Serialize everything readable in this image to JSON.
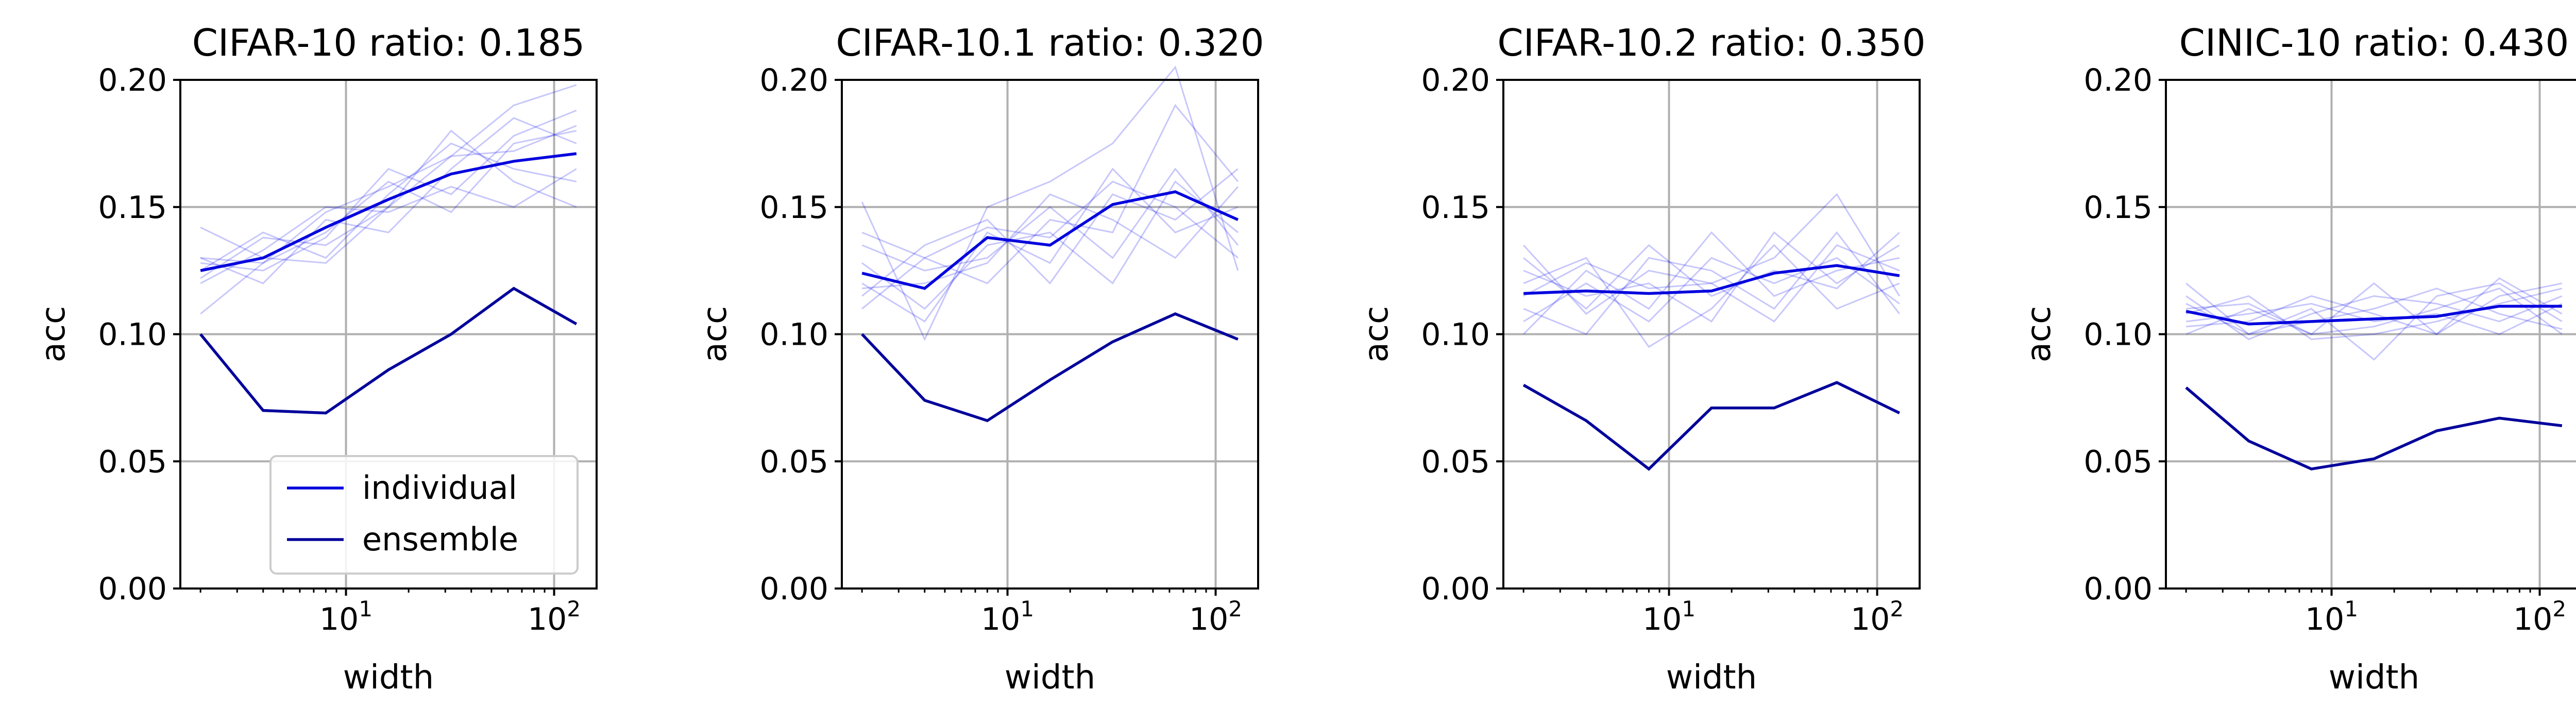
{
  "colors": {
    "individual": "#0000dd",
    "ensemble": "#00009b",
    "runs": "#0000ee"
  },
  "chart_data": [
    {
      "type": "line",
      "title": "CIFAR-10 ratio: 0.185",
      "xlabel": "width",
      "ylabel": "acc",
      "xscale": "log",
      "x": [
        2,
        4,
        8,
        16,
        32,
        64,
        128
      ],
      "ylim": [
        0.0,
        0.2
      ],
      "yticks": [
        0.0,
        0.05,
        0.1,
        0.15,
        0.2
      ],
      "ytick_labels": [
        "0.00",
        "0.05",
        "0.10",
        "0.15",
        "0.20"
      ],
      "xtick_labels": [
        "10",
        "10"
      ],
      "xtick_exponents": [
        "1",
        "2"
      ],
      "grid": true,
      "legend": {
        "placement": "lower-right",
        "entries": [
          "individual",
          "ensemble"
        ]
      },
      "series": [
        {
          "name": "individual",
          "values": [
            0.125,
            0.13,
            0.142,
            0.153,
            0.163,
            0.168,
            0.171
          ]
        },
        {
          "name": "ensemble",
          "values": [
            0.1,
            0.07,
            0.069,
            0.086,
            0.1,
            0.118,
            0.104
          ]
        }
      ],
      "runs": [
        [
          0.142,
          0.13,
          0.128,
          0.15,
          0.17,
          0.19,
          0.198
        ],
        [
          0.108,
          0.128,
          0.14,
          0.16,
          0.148,
          0.175,
          0.18
        ],
        [
          0.125,
          0.14,
          0.13,
          0.155,
          0.175,
          0.165,
          0.16
        ],
        [
          0.13,
          0.12,
          0.145,
          0.14,
          0.165,
          0.185,
          0.175
        ],
        [
          0.12,
          0.133,
          0.15,
          0.148,
          0.158,
          0.15,
          0.165
        ],
        [
          0.128,
          0.125,
          0.138,
          0.165,
          0.155,
          0.178,
          0.188
        ],
        [
          0.122,
          0.138,
          0.135,
          0.15,
          0.18,
          0.16,
          0.15
        ],
        [
          0.13,
          0.128,
          0.148,
          0.158,
          0.17,
          0.172,
          0.182
        ]
      ]
    },
    {
      "type": "line",
      "title": "CIFAR-10.1 ratio: 0.320",
      "xlabel": "width",
      "ylabel": "acc",
      "xscale": "log",
      "x": [
        2,
        4,
        8,
        16,
        32,
        64,
        128
      ],
      "ylim": [
        0.0,
        0.2
      ],
      "yticks": [
        0.0,
        0.05,
        0.1,
        0.15,
        0.2
      ],
      "ytick_labels": [
        "0.00",
        "0.05",
        "0.10",
        "0.15",
        "0.20"
      ],
      "xtick_labels": [
        "10",
        "10"
      ],
      "xtick_exponents": [
        "1",
        "2"
      ],
      "grid": true,
      "series": [
        {
          "name": "individual",
          "values": [
            0.124,
            0.118,
            0.138,
            0.135,
            0.151,
            0.156,
            0.145
          ]
        },
        {
          "name": "ensemble",
          "values": [
            0.1,
            0.074,
            0.066,
            0.082,
            0.097,
            0.108,
            0.098
          ]
        }
      ],
      "runs": [
        [
          0.152,
          0.098,
          0.15,
          0.16,
          0.175,
          0.205,
          0.125
        ],
        [
          0.11,
          0.13,
          0.12,
          0.145,
          0.14,
          0.19,
          0.16
        ],
        [
          0.12,
          0.105,
          0.14,
          0.128,
          0.165,
          0.14,
          0.15
        ],
        [
          0.135,
          0.125,
          0.13,
          0.15,
          0.13,
          0.165,
          0.135
        ],
        [
          0.115,
          0.135,
          0.145,
          0.12,
          0.155,
          0.145,
          0.165
        ],
        [
          0.128,
          0.11,
          0.135,
          0.14,
          0.12,
          0.16,
          0.14
        ],
        [
          0.118,
          0.12,
          0.128,
          0.155,
          0.145,
          0.13,
          0.158
        ],
        [
          0.14,
          0.13,
          0.142,
          0.138,
          0.16,
          0.15,
          0.13
        ]
      ]
    },
    {
      "type": "line",
      "title": "CIFAR-10.2 ratio: 0.350",
      "xlabel": "width",
      "ylabel": "acc",
      "xscale": "log",
      "x": [
        2,
        4,
        8,
        16,
        32,
        64,
        128
      ],
      "ylim": [
        0.0,
        0.2
      ],
      "yticks": [
        0.0,
        0.05,
        0.1,
        0.15,
        0.2
      ],
      "ytick_labels": [
        "0.00",
        "0.05",
        "0.10",
        "0.15",
        "0.20"
      ],
      "xtick_labels": [
        "10",
        "10"
      ],
      "xtick_exponents": [
        "1",
        "2"
      ],
      "grid": true,
      "series": [
        {
          "name": "individual",
          "values": [
            0.116,
            0.117,
            0.116,
            0.117,
            0.124,
            0.127,
            0.123
          ]
        },
        {
          "name": "ensemble",
          "values": [
            0.08,
            0.066,
            0.047,
            0.071,
            0.071,
            0.081,
            0.069
          ]
        }
      ],
      "runs": [
        [
          0.135,
          0.108,
          0.125,
          0.12,
          0.13,
          0.155,
          0.115
        ],
        [
          0.1,
          0.125,
          0.11,
          0.14,
          0.115,
          0.125,
          0.13
        ],
        [
          0.12,
          0.13,
          0.095,
          0.11,
          0.135,
          0.11,
          0.12
        ],
        [
          0.11,
          0.1,
          0.13,
          0.125,
          0.11,
          0.14,
          0.108
        ],
        [
          0.125,
          0.115,
          0.12,
          0.105,
          0.14,
          0.12,
          0.135
        ],
        [
          0.105,
          0.12,
          0.105,
          0.13,
          0.12,
          0.13,
          0.112
        ],
        [
          0.13,
          0.11,
          0.135,
          0.115,
          0.125,
          0.118,
          0.14
        ],
        [
          0.115,
          0.128,
          0.118,
          0.12,
          0.105,
          0.135,
          0.125
        ]
      ]
    },
    {
      "type": "line",
      "title": "CINIC-10 ratio: 0.430",
      "xlabel": "width",
      "ylabel": "acc",
      "xscale": "log",
      "x": [
        2,
        4,
        8,
        16,
        32,
        64,
        128
      ],
      "ylim": [
        0.0,
        0.2
      ],
      "yticks": [
        0.0,
        0.05,
        0.1,
        0.15,
        0.2
      ],
      "ytick_labels": [
        "0.00",
        "0.05",
        "0.10",
        "0.15",
        "0.20"
      ],
      "xtick_labels": [
        "10",
        "10"
      ],
      "xtick_exponents": [
        "1",
        "2"
      ],
      "grid": true,
      "series": [
        {
          "name": "individual",
          "values": [
            0.109,
            0.104,
            0.105,
            0.106,
            0.107,
            0.111,
            0.111
          ]
        },
        {
          "name": "ensemble",
          "values": [
            0.079,
            0.058,
            0.047,
            0.051,
            0.062,
            0.067,
            0.064
          ]
        }
      ],
      "runs": [
        [
          0.12,
          0.1,
          0.11,
          0.09,
          0.115,
          0.12,
          0.105
        ],
        [
          0.1,
          0.11,
          0.1,
          0.12,
          0.1,
          0.115,
          0.12
        ],
        [
          0.105,
          0.108,
          0.112,
          0.105,
          0.108,
          0.1,
          0.112
        ],
        [
          0.112,
          0.1,
          0.105,
          0.11,
          0.118,
          0.108,
          0.102
        ],
        [
          0.108,
          0.115,
          0.098,
          0.1,
          0.105,
          0.112,
          0.118
        ],
        [
          0.103,
          0.105,
          0.115,
          0.108,
          0.1,
          0.122,
          0.108
        ],
        [
          0.115,
          0.098,
          0.108,
          0.115,
          0.112,
          0.105,
          0.115
        ],
        [
          0.11,
          0.112,
          0.1,
          0.103,
          0.11,
          0.118,
          0.1
        ]
      ]
    }
  ]
}
